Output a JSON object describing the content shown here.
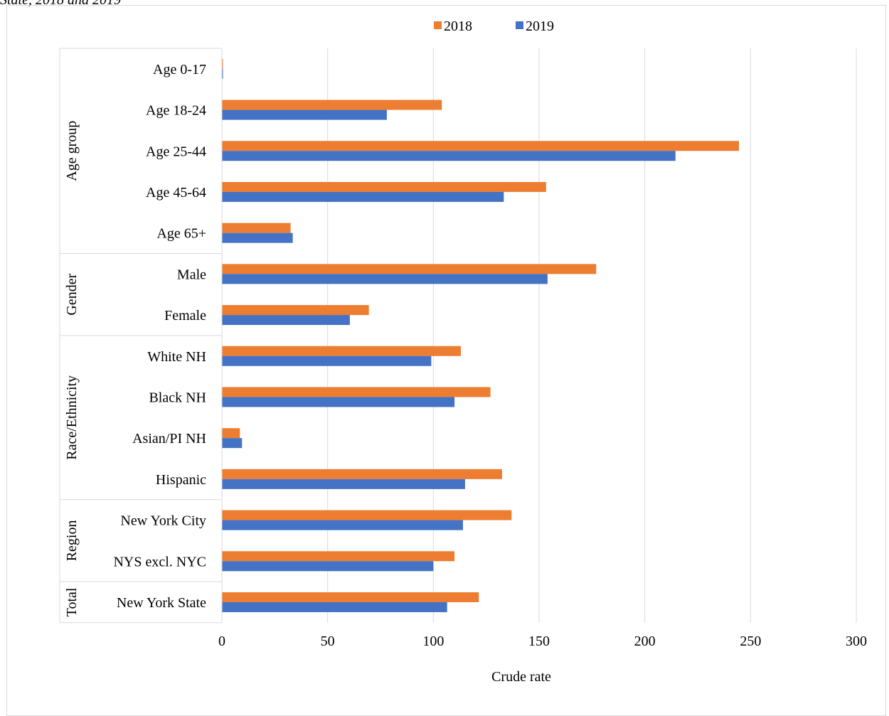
{
  "caption_fragment": "State, 2018 and 2019",
  "colors": {
    "2018": "#ED7D31",
    "2019": "#4472C4",
    "grid": "#d9d9d9"
  },
  "chart_data": {
    "type": "bar",
    "orientation": "horizontal",
    "title": "",
    "xlabel": "Crude rate",
    "ylabel": "",
    "xlim": [
      0,
      300
    ],
    "x_ticks": [
      0,
      50,
      100,
      150,
      200,
      250,
      300
    ],
    "grid": true,
    "legend_position": "top",
    "groups": [
      {
        "name": "Age group",
        "categories": [
          "Age 0-17",
          "Age 18-24",
          "Age 25-44",
          "Age 45-64",
          "Age 65+"
        ]
      },
      {
        "name": "Gender",
        "categories": [
          "Male",
          "Female"
        ]
      },
      {
        "name": "Race/Ethnicity",
        "categories": [
          "White NH",
          "Black NH",
          "Asian/PI NH",
          "Hispanic"
        ]
      },
      {
        "name": "Region",
        "categories": [
          "New York City",
          "NYS excl. NYC"
        ]
      },
      {
        "name": "Total",
        "categories": [
          "New York State"
        ]
      }
    ],
    "categories": [
      "Age 0-17",
      "Age 18-24",
      "Age 25-44",
      "Age 45-64",
      "Age 65+",
      "Male",
      "Female",
      "White NH",
      "Black NH",
      "Asian/PI NH",
      "Hispanic",
      "New York City",
      "NYS excl. NYC",
      "New York State"
    ],
    "series": [
      {
        "name": "2018",
        "values": [
          0.5,
          104,
          244.5,
          153.3,
          32.5,
          177,
          69.5,
          113,
          127,
          8.5,
          132.5,
          137,
          110,
          121.5
        ]
      },
      {
        "name": "2019",
        "values": [
          0.5,
          78,
          214.5,
          133.3,
          33.5,
          154,
          60.5,
          99,
          110,
          9.5,
          115,
          114,
          100,
          106.5
        ]
      }
    ]
  }
}
